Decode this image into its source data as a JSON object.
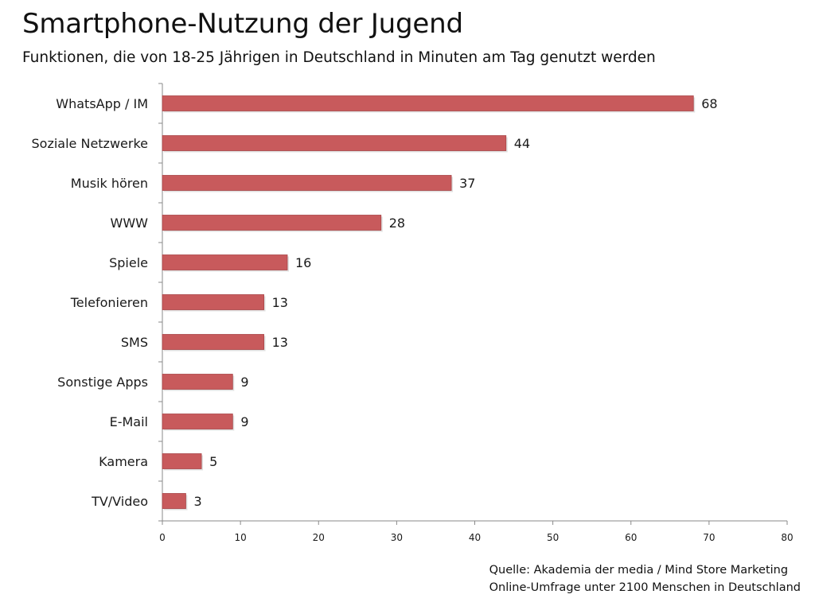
{
  "title": "Smartphone-Nutzung der Jugend",
  "subtitle": "Funktionen, die von 18-25 Jährigen in Deutschland in Minuten am Tag genutzt werden",
  "source": {
    "line1": "Quelle: Akademia der media / Mind Store Marketing",
    "line2": "Online-Umfrage unter 2100 Menschen in Deutschland"
  },
  "colors": {
    "bar": "#c85a5c",
    "bar_edge": "#a84446",
    "axis": "#8a8a8a"
  },
  "chart_data": {
    "type": "bar",
    "orientation": "horizontal",
    "categories": [
      "WhatsApp / IM",
      "Soziale Netzwerke",
      "Musik hören",
      "WWW",
      "Spiele",
      "Telefonieren",
      "SMS",
      "Sonstige Apps",
      "E-Mail",
      "Kamera",
      "TV/Video"
    ],
    "values": [
      68,
      44,
      37,
      28,
      16,
      13,
      13,
      9,
      9,
      5,
      3
    ],
    "data_labels": [
      "68",
      "44",
      "37",
      "28",
      "16",
      "13",
      "13",
      "9",
      "9",
      "5",
      "3"
    ],
    "xlim": [
      0,
      80
    ],
    "x_ticks": [
      0,
      10,
      20,
      30,
      40,
      50,
      60,
      70,
      80
    ],
    "grid": false,
    "legend": "none"
  }
}
